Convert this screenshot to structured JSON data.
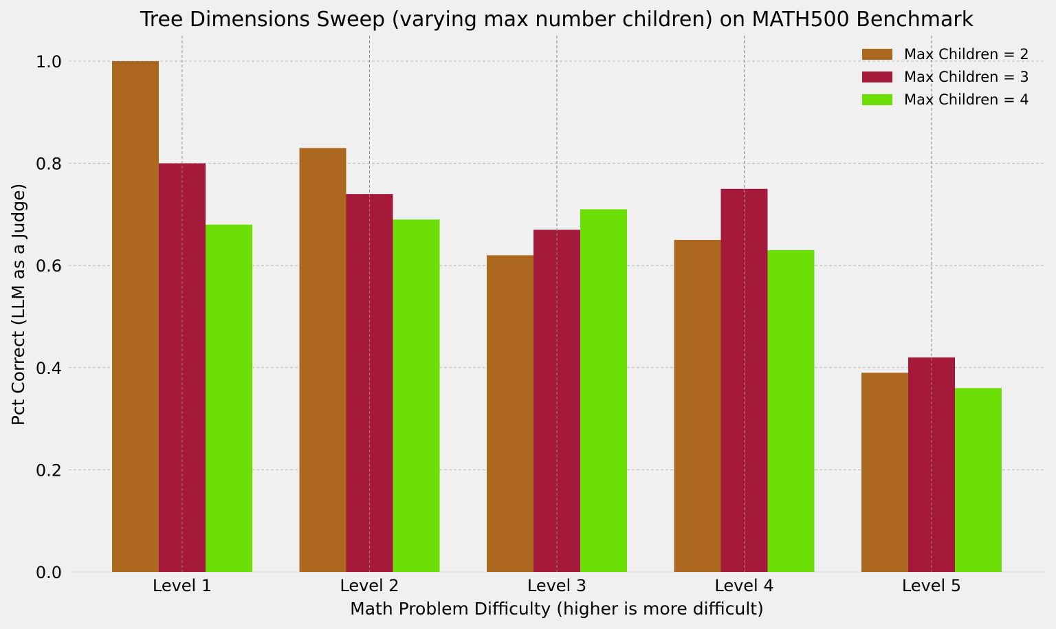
{
  "chart_data": {
    "type": "bar",
    "title": "Tree Dimensions Sweep (varying max number children) on MATH500 Benchmark",
    "xlabel": "Math Problem Difficulty (higher is more difficult)",
    "ylabel": "Pct Correct (LLM as a Judge)",
    "categories": [
      "Level 1",
      "Level 2",
      "Level 3",
      "Level 4",
      "Level 5"
    ],
    "yticks": [
      "0.0",
      "0.2",
      "0.4",
      "0.6",
      "0.8",
      "1.0"
    ],
    "ylim": [
      0,
      1.04
    ],
    "grid": true,
    "legend_position": "top-right",
    "series": [
      {
        "name": "Max Children = 2",
        "color": "#ab681e",
        "values": [
          1.0,
          0.83,
          0.62,
          0.65,
          0.39
        ]
      },
      {
        "name": "Max Children = 3",
        "color": "#a51a3a",
        "values": [
          0.8,
          0.74,
          0.67,
          0.75,
          0.42
        ]
      },
      {
        "name": "Max Children = 4",
        "color": "#6ade05",
        "values": [
          0.68,
          0.69,
          0.71,
          0.63,
          0.36
        ]
      }
    ]
  }
}
